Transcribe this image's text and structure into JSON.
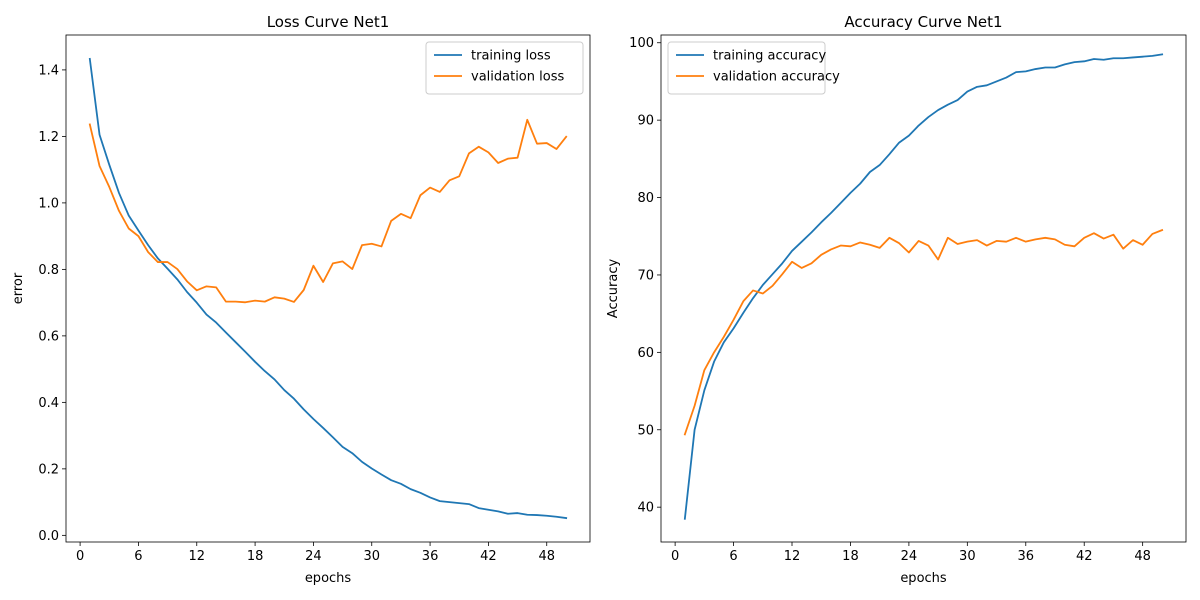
{
  "chart_data": [
    {
      "type": "line",
      "title": "Loss Curve Net1",
      "xlabel": "epochs",
      "ylabel": "error",
      "xlim": [
        -1.45,
        52.45
      ],
      "ylim": [
        -0.02,
        1.505
      ],
      "xticks": [
        0,
        6,
        12,
        18,
        24,
        30,
        36,
        42,
        48
      ],
      "yticks": [
        0.0,
        0.2,
        0.4,
        0.6,
        0.8,
        1.0,
        1.2,
        1.4
      ],
      "ytick_decimals": 1,
      "legend_position": "upper right",
      "x": [
        1,
        2,
        3,
        4,
        5,
        6,
        7,
        8,
        9,
        10,
        11,
        12,
        13,
        14,
        15,
        16,
        17,
        18,
        19,
        20,
        21,
        22,
        23,
        24,
        25,
        26,
        27,
        28,
        29,
        30,
        31,
        32,
        33,
        34,
        35,
        36,
        37,
        38,
        39,
        40,
        41,
        42,
        43,
        44,
        45,
        46,
        47,
        48,
        49,
        50
      ],
      "series": [
        {
          "name": "training loss",
          "color": "#1f77b4",
          "values": [
            1.433,
            1.205,
            1.115,
            1.03,
            0.962,
            0.917,
            0.873,
            0.833,
            0.802,
            0.77,
            0.732,
            0.7,
            0.664,
            0.64,
            0.61,
            0.581,
            0.552,
            0.522,
            0.494,
            0.469,
            0.437,
            0.411,
            0.379,
            0.35,
            0.323,
            0.295,
            0.266,
            0.247,
            0.221,
            0.201,
            0.183,
            0.166,
            0.155,
            0.139,
            0.128,
            0.114,
            0.103,
            0.1,
            0.097,
            0.094,
            0.082,
            0.077,
            0.072,
            0.065,
            0.067,
            0.062,
            0.061,
            0.059,
            0.056,
            0.052
          ]
        },
        {
          "name": "validation loss",
          "color": "#ff7f0e",
          "values": [
            1.236,
            1.111,
            1.048,
            0.976,
            0.923,
            0.9,
            0.852,
            0.822,
            0.822,
            0.801,
            0.764,
            0.737,
            0.749,
            0.746,
            0.703,
            0.703,
            0.701,
            0.706,
            0.703,
            0.716,
            0.712,
            0.702,
            0.738,
            0.811,
            0.762,
            0.818,
            0.824,
            0.801,
            0.873,
            0.877,
            0.869,
            0.946,
            0.967,
            0.954,
            1.023,
            1.046,
            1.033,
            1.068,
            1.08,
            1.149,
            1.169,
            1.152,
            1.12,
            1.133,
            1.136,
            1.25,
            1.178,
            1.18,
            1.162,
            1.199
          ]
        }
      ]
    },
    {
      "type": "line",
      "title": "Accuracy Curve Net1",
      "xlabel": "epochs",
      "ylabel": "Accuracy",
      "xlim": [
        -1.45,
        52.45
      ],
      "ylim": [
        35.5,
        101.0
      ],
      "xticks": [
        0,
        6,
        12,
        18,
        24,
        30,
        36,
        42,
        48
      ],
      "yticks": [
        40,
        50,
        60,
        70,
        80,
        90,
        100
      ],
      "ytick_decimals": 0,
      "legend_position": "upper left",
      "x": [
        1,
        2,
        3,
        4,
        5,
        6,
        7,
        8,
        9,
        10,
        11,
        12,
        13,
        14,
        15,
        16,
        17,
        18,
        19,
        20,
        21,
        22,
        23,
        24,
        25,
        26,
        27,
        28,
        29,
        30,
        31,
        32,
        33,
        34,
        35,
        36,
        37,
        38,
        39,
        40,
        41,
        42,
        43,
        44,
        45,
        46,
        47,
        48,
        49,
        50
      ],
      "series": [
        {
          "name": "training accuracy",
          "color": "#1f77b4",
          "values": [
            38.5,
            50.0,
            55.1,
            58.8,
            61.3,
            63.1,
            65.1,
            67.0,
            68.7,
            70.1,
            71.5,
            73.1,
            74.3,
            75.5,
            76.8,
            78.0,
            79.3,
            80.6,
            81.8,
            83.3,
            84.2,
            85.6,
            87.1,
            88.0,
            89.3,
            90.4,
            91.3,
            92.0,
            92.6,
            93.7,
            94.3,
            94.5,
            95.0,
            95.5,
            96.2,
            96.3,
            96.6,
            96.8,
            96.8,
            97.2,
            97.5,
            97.6,
            97.9,
            97.8,
            98.0,
            98.0,
            98.1,
            98.2,
            98.3,
            98.5
          ]
        },
        {
          "name": "validation accuracy",
          "color": "#ff7f0e",
          "values": [
            49.4,
            53.1,
            57.7,
            60.0,
            62.0,
            64.2,
            66.6,
            68.0,
            67.6,
            68.6,
            70.1,
            71.7,
            70.9,
            71.5,
            72.6,
            73.3,
            73.8,
            73.7,
            74.2,
            73.9,
            73.5,
            74.8,
            74.1,
            72.9,
            74.4,
            73.8,
            72.0,
            74.8,
            74.0,
            74.3,
            74.5,
            73.8,
            74.4,
            74.3,
            74.8,
            74.3,
            74.6,
            74.8,
            74.6,
            73.9,
            73.7,
            74.8,
            75.4,
            74.7,
            75.2,
            73.4,
            74.5,
            73.9,
            75.3,
            75.8
          ]
        }
      ]
    }
  ]
}
